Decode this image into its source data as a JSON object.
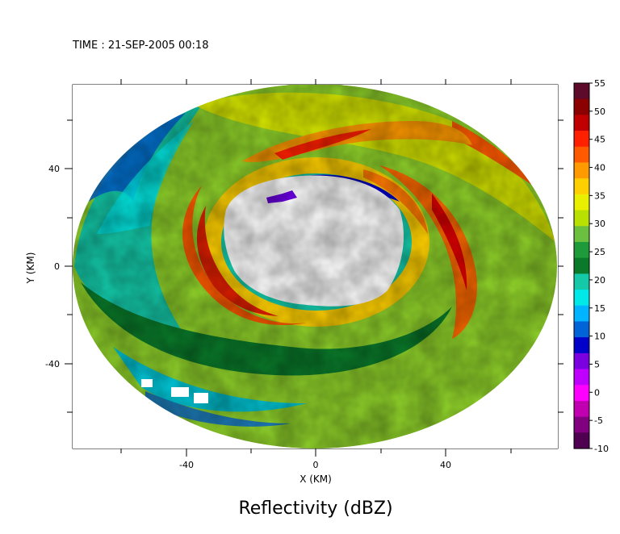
{
  "chart_data": {
    "type": "heatmap",
    "title": "Reflectivity (dBZ)",
    "time_label": "TIME : 21-SEP-2005 00:18",
    "xlabel": "X (KM)",
    "ylabel": "Y (KM)",
    "x_ticks": [
      "-40",
      "0",
      "40"
    ],
    "y_ticks": [
      "40",
      "0",
      "-40"
    ],
    "xlim": [
      -75,
      75
    ],
    "ylim": [
      -75,
      75
    ],
    "grid": false,
    "colorbar": {
      "label": "dBZ",
      "range": [
        -10,
        55
      ],
      "ticks": [
        "55",
        "50",
        "45",
        "40",
        "35",
        "30",
        "25",
        "20",
        "15",
        "10",
        "5",
        "0",
        "-5",
        "-10"
      ],
      "colors": [
        "#5e0a2a",
        "#8b0000",
        "#c00000",
        "#ff2000",
        "#ff5a00",
        "#ff9a00",
        "#ffd000",
        "#e8f000",
        "#b8e000",
        "#6cc040",
        "#1f9a3a",
        "#0a7a2a",
        "#14c8a8",
        "#00e8e8",
        "#00b4ff",
        "#0064d8",
        "#0000c8",
        "#7a00e0",
        "#c000ff",
        "#ff00ff",
        "#c000b0",
        "#800080",
        "#500050"
      ]
    },
    "field_description": "Annular radar reflectivity around hurricane eye; eye (no data) centered near (5, 15) km, radius ~30 km; outer range ~75 km",
    "features": [
      {
        "name": "eyewall",
        "center_km": [
          5,
          15
        ],
        "inner_radius_km": 28,
        "reflectivity_dbz": 45
      },
      {
        "name": "north-rainband",
        "reflectivity_dbz": 42
      },
      {
        "name": "east-rainband",
        "reflectivity_dbz": 42
      },
      {
        "name": "southwest-rainband",
        "reflectivity_dbz": 30
      },
      {
        "name": "west-dry-slot",
        "reflectivity_dbz": 20
      }
    ]
  }
}
